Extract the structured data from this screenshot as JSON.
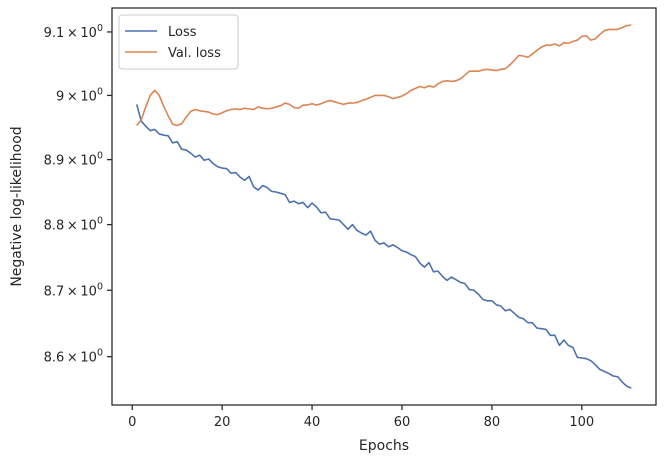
{
  "chart_data": {
    "type": "line",
    "title": "",
    "xlabel": "Epochs",
    "ylabel": "Negative log-likelihood",
    "xlim": [
      -4.5,
      116.5
    ],
    "ylim": [
      8.528,
      9.138
    ],
    "y_scale": "log",
    "grid": false,
    "legend": "top-left",
    "x_ticks": [
      0,
      20,
      40,
      60,
      80,
      100
    ],
    "x_tick_labels": [
      "0",
      "20",
      "40",
      "60",
      "80",
      "100"
    ],
    "y_ticks": [
      8.6,
      8.7,
      8.8,
      8.9,
      9.0,
      9.1
    ],
    "y_tick_labels": [
      {
        "mant": "8.6",
        "exp": "0"
      },
      {
        "mant": "8.7",
        "exp": "0"
      },
      {
        "mant": "8.8",
        "exp": "0"
      },
      {
        "mant": "8.9",
        "exp": "0"
      },
      {
        "mant": "9",
        "exp": "0"
      },
      {
        "mant": "9.1",
        "exp": "0"
      }
    ],
    "tick_mult": "×",
    "tick_base": "10",
    "series": [
      {
        "name": "Loss",
        "color": "#4c72b0",
        "points": [
          [
            1,
            8.986
          ],
          [
            2,
            8.96
          ],
          [
            3,
            8.952
          ],
          [
            4,
            8.945
          ],
          [
            5,
            8.947
          ],
          [
            6,
            8.94
          ],
          [
            7,
            8.938
          ],
          [
            8,
            8.937
          ],
          [
            9,
            8.926
          ],
          [
            10,
            8.928
          ],
          [
            11,
            8.916
          ],
          [
            12,
            8.915
          ],
          [
            13,
            8.91
          ],
          [
            14,
            8.904
          ],
          [
            15,
            8.907
          ],
          [
            16,
            8.899
          ],
          [
            17,
            8.901
          ],
          [
            18,
            8.894
          ],
          [
            19,
            8.889
          ],
          [
            20,
            8.887
          ],
          [
            21,
            8.886
          ],
          [
            22,
            8.879
          ],
          [
            23,
            8.88
          ],
          [
            24,
            8.873
          ],
          [
            25,
            8.868
          ],
          [
            26,
            8.874
          ],
          [
            27,
            8.858
          ],
          [
            28,
            8.853
          ],
          [
            29,
            8.86
          ],
          [
            30,
            8.857
          ],
          [
            31,
            8.851
          ],
          [
            32,
            8.85
          ],
          [
            33,
            8.848
          ],
          [
            34,
            8.846
          ],
          [
            35,
            8.834
          ],
          [
            36,
            8.836
          ],
          [
            37,
            8.832
          ],
          [
            38,
            8.834
          ],
          [
            39,
            8.826
          ],
          [
            40,
            8.833
          ],
          [
            41,
            8.827
          ],
          [
            42,
            8.818
          ],
          [
            43,
            8.819
          ],
          [
            44,
            8.809
          ],
          [
            45,
            8.808
          ],
          [
            46,
            8.807
          ],
          [
            47,
            8.8
          ],
          [
            48,
            8.793
          ],
          [
            49,
            8.8
          ],
          [
            50,
            8.791
          ],
          [
            51,
            8.787
          ],
          [
            52,
            8.784
          ],
          [
            53,
            8.79
          ],
          [
            54,
            8.776
          ],
          [
            55,
            8.77
          ],
          [
            56,
            8.772
          ],
          [
            57,
            8.766
          ],
          [
            58,
            8.769
          ],
          [
            59,
            8.765
          ],
          [
            60,
            8.76
          ],
          [
            61,
            8.758
          ],
          [
            62,
            8.754
          ],
          [
            63,
            8.751
          ],
          [
            64,
            8.741
          ],
          [
            65,
            8.735
          ],
          [
            66,
            8.742
          ],
          [
            67,
            8.728
          ],
          [
            68,
            8.729
          ],
          [
            69,
            8.721
          ],
          [
            70,
            8.715
          ],
          [
            71,
            8.72
          ],
          [
            72,
            8.716
          ],
          [
            73,
            8.712
          ],
          [
            74,
            8.71
          ],
          [
            75,
            8.701
          ],
          [
            76,
            8.7
          ],
          [
            77,
            8.694
          ],
          [
            78,
            8.686
          ],
          [
            79,
            8.684
          ],
          [
            80,
            8.684
          ],
          [
            81,
            8.678
          ],
          [
            82,
            8.676
          ],
          [
            83,
            8.669
          ],
          [
            84,
            8.671
          ],
          [
            85,
            8.665
          ],
          [
            86,
            8.659
          ],
          [
            87,
            8.657
          ],
          [
            88,
            8.651
          ],
          [
            89,
            8.651
          ],
          [
            90,
            8.643
          ],
          [
            91,
            8.642
          ],
          [
            92,
            8.641
          ],
          [
            93,
            8.632
          ],
          [
            94,
            8.632
          ],
          [
            95,
            8.617
          ],
          [
            96,
            8.625
          ],
          [
            97,
            8.617
          ],
          [
            98,
            8.614
          ],
          [
            99,
            8.599
          ],
          [
            100,
            8.598
          ],
          [
            101,
            8.597
          ],
          [
            102,
            8.594
          ],
          [
            103,
            8.588
          ],
          [
            104,
            8.581
          ],
          [
            105,
            8.578
          ],
          [
            106,
            8.575
          ],
          [
            107,
            8.571
          ],
          [
            108,
            8.57
          ],
          [
            109,
            8.562
          ],
          [
            110,
            8.556
          ],
          [
            111,
            8.553
          ]
        ]
      },
      {
        "name": "Val. loss",
        "color": "#dd8452",
        "points": [
          [
            1,
            8.953
          ],
          [
            2,
            8.962
          ],
          [
            3,
            8.982
          ],
          [
            4,
            9.0
          ],
          [
            5,
            9.008
          ],
          [
            6,
            9.0
          ],
          [
            7,
            8.983
          ],
          [
            8,
            8.968
          ],
          [
            9,
            8.955
          ],
          [
            10,
            8.953
          ],
          [
            11,
            8.956
          ],
          [
            12,
            8.966
          ],
          [
            13,
            8.975
          ],
          [
            14,
            8.978
          ],
          [
            15,
            8.976
          ],
          [
            16,
            8.975
          ],
          [
            17,
            8.974
          ],
          [
            18,
            8.971
          ],
          [
            19,
            8.97
          ],
          [
            20,
            8.973
          ],
          [
            21,
            8.976
          ],
          [
            22,
            8.978
          ],
          [
            23,
            8.979
          ],
          [
            24,
            8.978
          ],
          [
            25,
            8.98
          ],
          [
            26,
            8.979
          ],
          [
            27,
            8.978
          ],
          [
            28,
            8.982
          ],
          [
            29,
            8.98
          ],
          [
            30,
            8.979
          ],
          [
            31,
            8.98
          ],
          [
            32,
            8.982
          ],
          [
            33,
            8.984
          ],
          [
            34,
            8.988
          ],
          [
            35,
            8.986
          ],
          [
            36,
            8.981
          ],
          [
            37,
            8.98
          ],
          [
            38,
            8.985
          ],
          [
            39,
            8.985
          ],
          [
            40,
            8.987
          ],
          [
            41,
            8.985
          ],
          [
            42,
            8.987
          ],
          [
            43,
            8.99
          ],
          [
            44,
            8.992
          ],
          [
            45,
            8.99
          ],
          [
            46,
            8.988
          ],
          [
            47,
            8.986
          ],
          [
            48,
            8.988
          ],
          [
            49,
            8.988
          ],
          [
            50,
            8.989
          ],
          [
            51,
            8.992
          ],
          [
            52,
            8.994
          ],
          [
            53,
            8.997
          ],
          [
            54,
            9.0
          ],
          [
            55,
            9.0
          ],
          [
            56,
            9.0
          ],
          [
            57,
            8.998
          ],
          [
            58,
            8.995
          ],
          [
            59,
            8.997
          ],
          [
            60,
            8.999
          ],
          [
            61,
            9.003
          ],
          [
            62,
            9.008
          ],
          [
            63,
            9.011
          ],
          [
            64,
            9.014
          ],
          [
            65,
            9.012
          ],
          [
            66,
            9.015
          ],
          [
            67,
            9.013
          ],
          [
            68,
            9.018
          ],
          [
            69,
            9.022
          ],
          [
            70,
            9.023
          ],
          [
            71,
            9.022
          ],
          [
            72,
            9.023
          ],
          [
            73,
            9.026
          ],
          [
            74,
            9.032
          ],
          [
            75,
            9.038
          ],
          [
            76,
            9.038
          ],
          [
            77,
            9.038
          ],
          [
            78,
            9.04
          ],
          [
            79,
            9.041
          ],
          [
            80,
            9.04
          ],
          [
            81,
            9.039
          ],
          [
            82,
            9.041
          ],
          [
            83,
            9.042
          ],
          [
            84,
            9.048
          ],
          [
            85,
            9.055
          ],
          [
            86,
            9.063
          ],
          [
            87,
            9.062
          ],
          [
            88,
            9.06
          ],
          [
            89,
            9.065
          ],
          [
            90,
            9.071
          ],
          [
            91,
            9.076
          ],
          [
            92,
            9.079
          ],
          [
            93,
            9.079
          ],
          [
            94,
            9.081
          ],
          [
            95,
            9.078
          ],
          [
            96,
            9.083
          ],
          [
            97,
            9.082
          ],
          [
            98,
            9.085
          ],
          [
            99,
            9.087
          ],
          [
            100,
            9.093
          ],
          [
            101,
            9.094
          ],
          [
            102,
            9.087
          ],
          [
            103,
            9.089
          ],
          [
            104,
            9.096
          ],
          [
            105,
            9.102
          ],
          [
            106,
            9.104
          ],
          [
            107,
            9.104
          ],
          [
            108,
            9.104
          ],
          [
            109,
            9.107
          ],
          [
            110,
            9.11
          ],
          [
            111,
            9.111
          ]
        ]
      }
    ]
  }
}
